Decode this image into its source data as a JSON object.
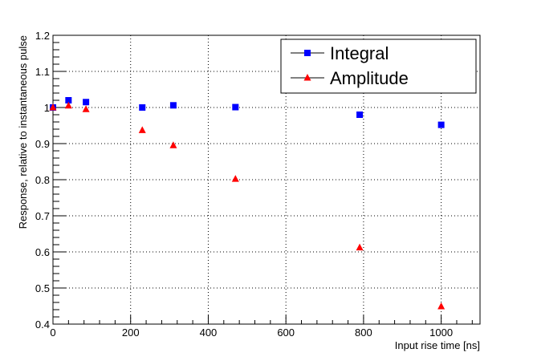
{
  "chart_data": {
    "type": "scatter",
    "title": "",
    "xlabel": "Input rise time [ns]",
    "ylabel": "Response, relative to instantaneous pulse",
    "xlim": [
      0,
      1100
    ],
    "ylim": [
      0.4,
      1.2
    ],
    "x_ticks": [
      0,
      200,
      400,
      600,
      800,
      1000
    ],
    "y_ticks": [
      0.4,
      0.5,
      0.6,
      0.7,
      0.8,
      0.9,
      1,
      1.1,
      1.2
    ],
    "grid": true,
    "legend_position": "top-right",
    "series": [
      {
        "name": "Integral",
        "marker": "square",
        "color": "#0000ff",
        "points": [
          {
            "x": 0,
            "y": 1.0
          },
          {
            "x": 40,
            "y": 1.02
          },
          {
            "x": 85,
            "y": 1.015
          },
          {
            "x": 230,
            "y": 1.0
          },
          {
            "x": 310,
            "y": 1.006
          },
          {
            "x": 470,
            "y": 1.001
          },
          {
            "x": 790,
            "y": 0.98
          },
          {
            "x": 1000,
            "y": 0.952
          }
        ]
      },
      {
        "name": "Amplitude",
        "marker": "triangle",
        "color": "#ff0000",
        "points": [
          {
            "x": 0,
            "y": 1.0
          },
          {
            "x": 40,
            "y": 1.005
          },
          {
            "x": 85,
            "y": 0.995
          },
          {
            "x": 230,
            "y": 0.937
          },
          {
            "x": 310,
            "y": 0.895
          },
          {
            "x": 470,
            "y": 0.802
          },
          {
            "x": 790,
            "y": 0.612
          },
          {
            "x": 1000,
            "y": 0.449
          }
        ]
      }
    ]
  }
}
